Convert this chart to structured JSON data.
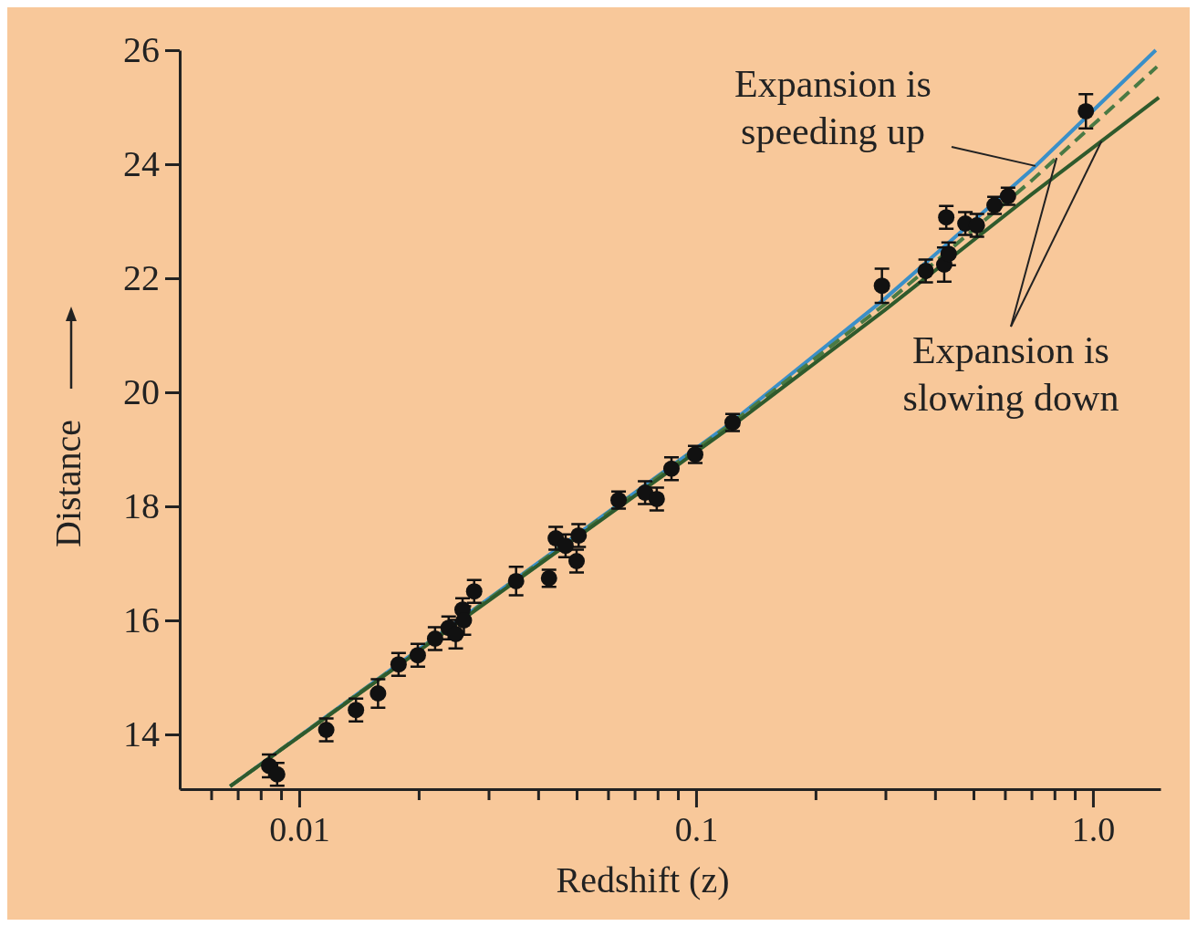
{
  "chart_data": {
    "type": "scatter",
    "xlabel": "Redshift (z)",
    "ylabel": "Distance",
    "log": "x",
    "xlim": [
      0.005,
      1.48
    ],
    "ylim": [
      13.04,
      26
    ],
    "xticks": [
      {
        "value": 0.006,
        "label": null
      },
      {
        "value": 0.007,
        "label": null
      },
      {
        "value": 0.008,
        "label": null
      },
      {
        "value": 0.009,
        "label": null
      },
      {
        "value": 0.01,
        "label": "0.01"
      },
      {
        "value": 0.02,
        "label": null
      },
      {
        "value": 0.03,
        "label": null
      },
      {
        "value": 0.04,
        "label": null
      },
      {
        "value": 0.05,
        "label": null
      },
      {
        "value": 0.06,
        "label": null
      },
      {
        "value": 0.07,
        "label": null
      },
      {
        "value": 0.08,
        "label": null
      },
      {
        "value": 0.09,
        "label": null
      },
      {
        "value": 0.1,
        "label": "0.1"
      },
      {
        "value": 0.2,
        "label": null
      },
      {
        "value": 0.3,
        "label": null
      },
      {
        "value": 0.4,
        "label": null
      },
      {
        "value": 0.5,
        "label": null
      },
      {
        "value": 0.6,
        "label": null
      },
      {
        "value": 0.7,
        "label": null
      },
      {
        "value": 0.8,
        "label": null
      },
      {
        "value": 0.9,
        "label": null
      },
      {
        "value": 1,
        "label": "1.0"
      }
    ],
    "yticks": [
      14,
      16,
      18,
      20,
      22,
      24,
      26
    ],
    "grid": false,
    "series": [
      {
        "type": "scatter",
        "color": "#111111",
        "marker": "circle",
        "x": [
          0.0084,
          0.0088,
          0.0117,
          0.0139,
          0.0158,
          0.0178,
          0.0199,
          0.022,
          0.0238,
          0.0248,
          0.0258,
          0.026,
          0.0276,
          0.0352,
          0.0426,
          0.0443,
          0.0469,
          0.05,
          0.0506,
          0.0638,
          0.0744,
          0.0796,
          0.0867,
          0.0995,
          0.1236,
          0.294,
          0.379,
          0.422,
          0.433,
          0.427,
          0.477,
          0.51,
          0.565,
          0.611,
          0.96
        ],
        "values": [
          13.45,
          13.3,
          14.08,
          14.43,
          14.72,
          15.23,
          15.39,
          15.68,
          15.87,
          15.76,
          16.19,
          16.0,
          16.51,
          16.69,
          16.74,
          17.44,
          17.31,
          17.04,
          17.49,
          18.11,
          18.24,
          18.13,
          18.66,
          18.91,
          19.47,
          21.87,
          22.13,
          22.24,
          22.43,
          23.07,
          22.96,
          22.93,
          23.28,
          23.44,
          24.93
        ],
        "errors": [
          0.2,
          0.2,
          0.2,
          0.2,
          0.25,
          0.2,
          0.2,
          0.2,
          0.2,
          0.25,
          0.2,
          0.25,
          0.2,
          0.25,
          0.15,
          0.2,
          0.2,
          0.2,
          0.2,
          0.15,
          0.2,
          0.2,
          0.2,
          0.15,
          0.15,
          0.3,
          0.2,
          0.3,
          0.2,
          0.2,
          0.2,
          0.2,
          0.15,
          0.15,
          0.3
        ]
      },
      {
        "type": "line",
        "color": "#3a8fc8",
        "line_style": "solid",
        "marker": "none",
        "x": [
          0.0067,
          0.12,
          0.3,
          0.7,
          1.44
        ],
        "values": [
          13.09,
          19.42,
          21.65,
          23.9,
          26.0
        ]
      },
      {
        "type": "line",
        "color": "#4a7a44",
        "line_style": "dashed",
        "marker": "none",
        "x": [
          0.0067,
          0.12,
          0.3,
          0.7,
          1.45
        ],
        "values": [
          13.09,
          19.4,
          21.55,
          23.71,
          25.71
        ]
      },
      {
        "type": "line",
        "color": "#2f5a2c",
        "line_style": "solid",
        "marker": "none",
        "x": [
          0.0067,
          0.12,
          0.3,
          0.7,
          1.466
        ],
        "values": [
          13.09,
          19.35,
          21.45,
          23.47,
          25.17
        ]
      }
    ],
    "annotations": [
      {
        "text": "Expansion is speeding up",
        "x": 0.716,
        "y": 23.97
      },
      {
        "text": "Expansion is slowing down",
        "x": 0.81,
        "y": 24.11
      }
    ]
  }
}
